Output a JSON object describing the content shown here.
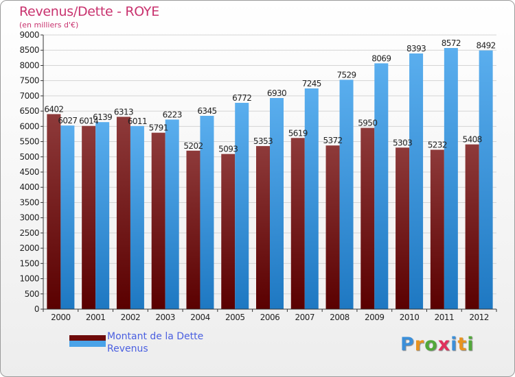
{
  "chart_data": {
    "type": "bar",
    "title": "Revenus/Dette - ROYE",
    "subtitle": "(en milliers d'€)",
    "categories": [
      "2000",
      "2001",
      "2002",
      "2003",
      "2004",
      "2005",
      "2006",
      "2007",
      "2008",
      "2009",
      "2010",
      "2011",
      "2012"
    ],
    "series": [
      {
        "name": "Montant de la Dette",
        "color": "#6e0a0a",
        "values": [
          6402,
          6014,
          6313,
          5791,
          5202,
          5093,
          5353,
          5619,
          5372,
          5950,
          5303,
          5232,
          5408
        ],
        "labels": [
          "6402",
          "6014",
          "6313",
          "5791",
          "5202",
          "5093",
          "5353",
          "5619",
          "5372",
          "5950",
          "5303",
          "5232",
          "5408"
        ]
      },
      {
        "name": "Revenus",
        "color": "#4aa3e8",
        "values": [
          6027,
          6139,
          6011,
          6223,
          6345,
          6772,
          6930,
          7245,
          7529,
          8069,
          8393,
          8572,
          8492
        ],
        "labels": [
          "6027",
          "6139",
          "6011",
          "6223",
          "6345",
          "6772",
          "6930",
          "7245",
          "7529",
          "8069",
          "8393",
          "8572",
          "8492"
        ]
      }
    ],
    "ylim": [
      0,
      9000
    ],
    "ytick_step": 500,
    "grid": true,
    "legend_position": "bottom-left"
  },
  "branding": {
    "logo_letters": [
      "P",
      "r",
      "o",
      "x",
      "i",
      "t",
      "i"
    ],
    "logo_colors": [
      "#3b8fd9",
      "#e8931f",
      "#52a83a",
      "#e0305c",
      "#3b8fd9",
      "#e8931f",
      "#52a83a"
    ]
  }
}
